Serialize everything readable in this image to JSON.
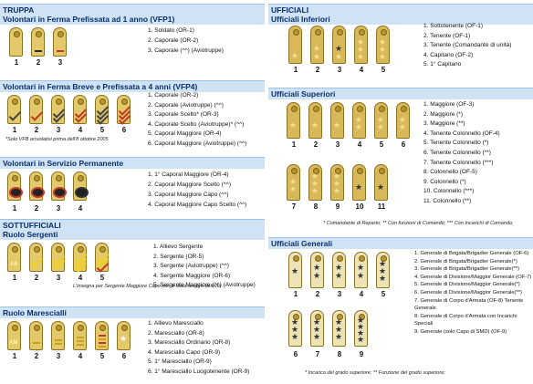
{
  "left": {
    "top_label": "TRUPPA",
    "vfp1": {
      "title": "Volontari in Ferma Prefissata ad 1 anno (VFP1)",
      "nums": [
        "1",
        "2",
        "3"
      ],
      "items": [
        "1. Soldato (OR-1)",
        "2. Caporale (OR-2)",
        "3. Caporale (^^) (Aviotruppe)"
      ]
    },
    "vfp4": {
      "title": "Volontari in Ferma Breve  e Prefissata a 4 anni (VFP4)",
      "nums": [
        "1",
        "2",
        "3",
        "4",
        "5",
        "6"
      ],
      "items": [
        "1. Caporale (OR-2)",
        "2. Caporale (Aviotruppe) (^^)",
        "3. Caporale Scelto* (OR-3)",
        "4. Caporale Scelto (Aviotruppe)* (^^)",
        "5. Caporal Maggiore (OR-4)",
        "6. Caporal Maggiore (Aviotruppe) (^^)"
      ],
      "note": "*Solo VFB arruolatisi prima dell'8 ottobre 2005"
    },
    "vsp": {
      "title": "Volontari in Servizio Permanente",
      "nums": [
        "1",
        "2",
        "3",
        "4"
      ],
      "items": [
        "1. 1° Caporal Maggiore (OR-4)",
        "2. Caporal Maggiore Scelto (^^)",
        "3. Caporal Maggiore Capo (^^)",
        "4. Caporal Maggiore Capo Scelto (^^)"
      ]
    },
    "sott_label": "SOTTUFFICIALI",
    "sergenti": {
      "title": "Ruolo Sergenti",
      "nums": [
        "1",
        "2",
        "3",
        "4",
        "5"
      ],
      "items": [
        "1. Allievo Sergente",
        "2. Sergente (OR-5)",
        "3. Sergente (Aviotruppe) (^^)",
        "4. Sergente Maggiore (OR-6)",
        "5. Sergente Maggiore (^^) (Aviotruppe)"
      ],
      "note": "L'insegna per Sergente Maggiore Capo non è stata ancora definita"
    },
    "marescialli": {
      "title": "Ruolo Marescialli",
      "nums": [
        "1",
        "2",
        "3",
        "4",
        "5",
        "6"
      ],
      "items": [
        "1. Allievo Maresciallo",
        "2. Maresciallo (OR-8)",
        "3. Maresciallo Ordinario (OR-8)",
        "4. Maresciallo Capo (OR-9)",
        "5. 1° Maresciallo (OR-9)",
        "6. 1° Maresciallo Luogotenente (OR-9)"
      ]
    }
  },
  "right": {
    "top_label": "UFFICIALI",
    "inferiori": {
      "title": "Ufficiali Inferiori",
      "nums": [
        "1",
        "2",
        "3",
        "4",
        "5"
      ],
      "items": [
        "1. Sottotenente (OF-1)",
        "2. Tenente (OF-1)",
        "3. Tenente (Comandante di unità)",
        "4. Capitano (OF-2)",
        "5. 1° Capitano"
      ]
    },
    "superiori": {
      "title": "Ufficiali Superiori",
      "nums_a": [
        "1",
        "2",
        "3",
        "4",
        "5",
        "6"
      ],
      "nums_b": [
        "7",
        "8",
        "9",
        "10",
        "11"
      ],
      "items": [
        "1. Maggiore (OF-3)",
        "2. Maggiore (*)",
        "3. Maggiore (**)",
        "4. Tenente Colonnello (OF-4)",
        "5. Tenente Colonnello (*)",
        "6. Tenente Colonnello (**)",
        "7. Tenente Colonnello (***)",
        "8. Colonnello (OF-5)",
        "9. Colonnello (*)",
        "10. Colonnello (***)",
        "11. Colonnello (**)"
      ],
      "note": "* Comandante di Reparto; ** Con funzioni di Comando;  *** Con Incarichi di Comando;"
    },
    "generali": {
      "title": "Ufficiali Generali",
      "nums_a": [
        "1",
        "2",
        "3",
        "4",
        "5"
      ],
      "nums_b": [
        "6",
        "7",
        "8",
        "9"
      ],
      "items": [
        "1. Generale di Brigata/Brigadier Generale (OF-6)",
        "2. Generale di Brigata/Brigadier Generale(*)",
        "3. Generale di Brigata/Brigadier Generale(**)",
        "4. Generale di Divisione/Maggior Generale (OF-7)",
        "5. Generale di Divisione/Maggior Generale(*)",
        "6. Generale di Divisione/Maggior Generale(**)",
        "7. Generale di Corpo d'Armata (OF-8) Tenente Generale",
        "8. Generale di Corpo d'Armata con Incarichi Speciali",
        "9. Generale (solo Capo di SMD) (OF-9)"
      ],
      "note": "* Incarico del grado superiore;  ** Funzione del grado superiore;"
    }
  }
}
